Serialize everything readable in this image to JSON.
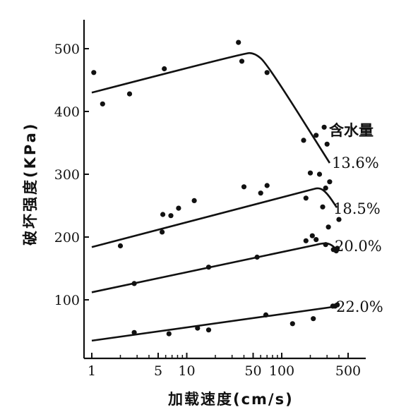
{
  "chart_data": {
    "type": "scatter",
    "xscale": "log",
    "xlabel": "加载速度(cm/s)",
    "ylabel": "破坏强度(KPa)",
    "legend_title": "含水量",
    "xlim": [
      0.85,
      600
    ],
    "ylim": [
      0,
      560
    ],
    "xticks": [
      1,
      5,
      10,
      50,
      100,
      500
    ],
    "xtick_labels": [
      "1",
      "5",
      "10",
      "50",
      "100",
      "500"
    ],
    "yticks": [
      100,
      200,
      300,
      400,
      500
    ],
    "ytick_labels": [
      "100",
      "200",
      "300",
      "400",
      "500"
    ],
    "grid": false,
    "series": [
      {
        "name": "13.6%",
        "points": [
          [
            1.05,
            462
          ],
          [
            1.3,
            412
          ],
          [
            2.5,
            428
          ],
          [
            5.8,
            468
          ],
          [
            35,
            510
          ],
          [
            38,
            480
          ],
          [
            70,
            462
          ],
          [
            170,
            354
          ],
          [
            230,
            362
          ],
          [
            280,
            375
          ],
          [
            300,
            348
          ]
        ],
        "fit": [
          [
            1,
            430
          ],
          [
            40,
            493
          ],
          [
            52,
            493
          ],
          [
            70,
            476
          ],
          [
            320,
            318
          ]
        ]
      },
      {
        "name": "18.5%",
        "points": [
          [
            2,
            186
          ],
          [
            5.5,
            208
          ],
          [
            5.6,
            236
          ],
          [
            6.8,
            234
          ],
          [
            8.2,
            246
          ],
          [
            12,
            258
          ],
          [
            40,
            280
          ],
          [
            60,
            270
          ],
          [
            70,
            282
          ],
          [
            180,
            262
          ],
          [
            200,
            302
          ],
          [
            250,
            300
          ],
          [
            270,
            248
          ],
          [
            290,
            278
          ],
          [
            320,
            288
          ],
          [
            400,
            228
          ]
        ],
        "fit": [
          [
            1,
            184
          ],
          [
            200,
            275
          ],
          [
            250,
            279
          ],
          [
            300,
            270
          ],
          [
            380,
            247
          ]
        ]
      },
      {
        "name": "20.0%",
        "points": [
          [
            2.8,
            126
          ],
          [
            17,
            152
          ],
          [
            55,
            168
          ],
          [
            180,
            194
          ],
          [
            210,
            202
          ],
          [
            230,
            196
          ],
          [
            290,
            188
          ],
          [
            310,
            216
          ],
          [
            350,
            180
          ],
          [
            375,
            178
          ],
          [
            385,
            182
          ]
        ],
        "fit": [
          [
            1,
            112
          ],
          [
            200,
            185
          ],
          [
            260,
            190
          ],
          [
            320,
            190
          ],
          [
            380,
            180
          ]
        ]
      },
      {
        "name": "22.0%",
        "points": [
          [
            2.8,
            48
          ],
          [
            6.5,
            46
          ],
          [
            13,
            55
          ],
          [
            17,
            52
          ],
          [
            68,
            76
          ],
          [
            130,
            62
          ],
          [
            215,
            70
          ],
          [
            345,
            90
          ],
          [
            365,
            90
          ],
          [
            385,
            92
          ]
        ],
        "fit": [
          [
            1,
            35
          ],
          [
            400,
            90
          ]
        ]
      }
    ]
  }
}
